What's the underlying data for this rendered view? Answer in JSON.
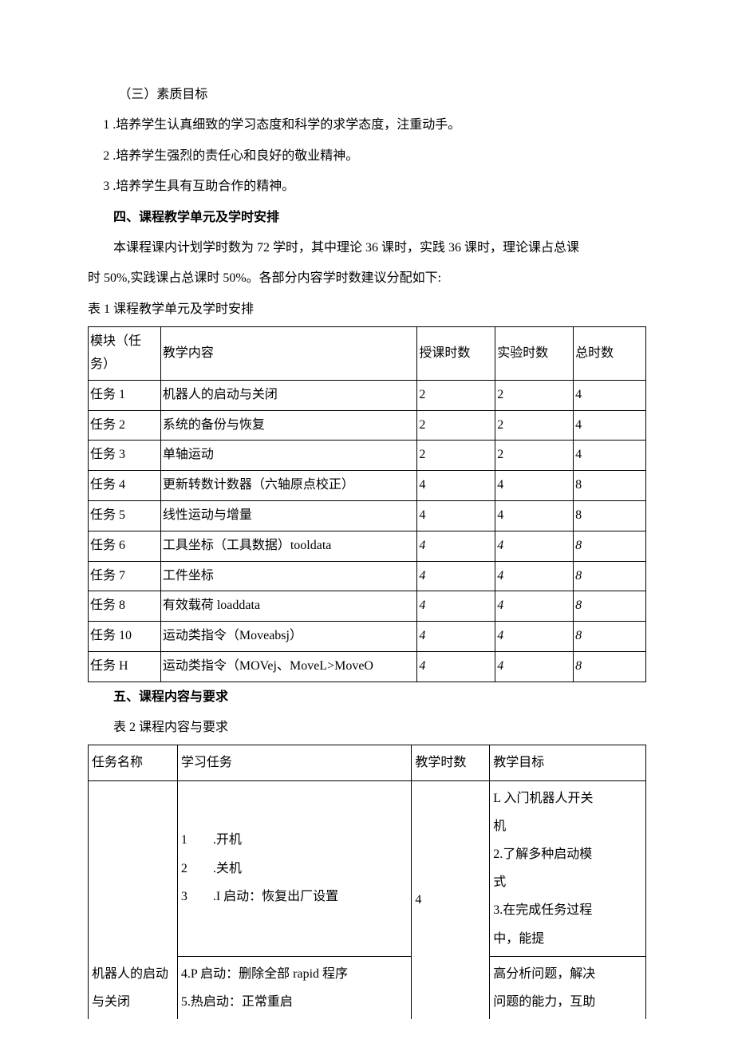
{
  "heading_sub": "（三）素质目标",
  "goals": [
    "1 .培养学生认真细致的学习态度和科学的求学态度，注重动手。",
    "2  .培养学生强烈的责任心和良好的敬业精神。",
    "3  .培养学生具有互助合作的精神。"
  ],
  "section4_title": "四、课程教学单元及学时安排",
  "section4_body1": "本课程课内计划学时数为 72 学时，其中理论 36 课时，实践 36 课时，理论课占总课",
  "section4_body2": "时 50%,实践课占总课时 50%。各部分内容学时数建议分配如下:",
  "table1_caption": "表 1 课程教学单元及学时安排",
  "table1": {
    "col_widths": [
      "13%",
      "46%",
      "14%",
      "14%",
      "13%"
    ],
    "headers": [
      "模块（任务）",
      "教学内容",
      "授课时数",
      "实验时数",
      "总时数"
    ],
    "rows": [
      [
        "任务 1",
        "机器人的启动与关闭",
        "2",
        "2",
        "4"
      ],
      [
        "任务 2",
        "系统的备份与恢复",
        "2",
        "2",
        "4"
      ],
      [
        "任务 3",
        "单轴运动",
        "2",
        "2",
        "4"
      ],
      [
        "任务 4",
        "更新转数计数器（六轴原点校正）",
        "4",
        "4",
        "8"
      ],
      [
        "任务 5",
        "线性运动与增量",
        "4",
        "4",
        "8"
      ],
      [
        "任务 6",
        "工具坐标（工具数据）tooldata",
        "4",
        "4",
        "8"
      ],
      [
        "任务 7",
        "工件坐标",
        "4",
        "4",
        "8"
      ],
      [
        "任务 8",
        "有效载荷 loaddata",
        "4",
        "4",
        "8"
      ],
      [
        "任务 10",
        "运动类指令（Moveabsj）",
        "4",
        "4",
        "8"
      ],
      [
        "任务 H",
        "运动类指令（MOVej、MoveL>MoveO",
        "4",
        "4",
        "8"
      ]
    ],
    "italic_rows_start": 5
  },
  "section5_title": "五、课程内容与要求",
  "table2_caption": "表 2 课程内容与要求",
  "table2": {
    "col_widths": [
      "16%",
      "42%",
      "14%",
      "28%"
    ],
    "headers": [
      "任务名称",
      "学习任务",
      "教学时数",
      "教学目标"
    ],
    "row1": {
      "name_line1": "机器人的启动",
      "name_line2": "与关闭",
      "tasks_a": [
        "1        .开机",
        "2        .关机",
        "3        .I 启动：恢复出厂设置"
      ],
      "hours": "4",
      "goals_a": [
        "L 入门机器人开关",
        "机",
        "2.了解多种启动模",
        "式",
        "3.在完成任务过程",
        "中，能提"
      ],
      "tasks_b": [
        "4.P 启动：删除全部 rapid 程序",
        "5.热启动：正常重启"
      ],
      "goals_b": [
        "高分析问题，解决",
        "问题的能力，互助"
      ]
    }
  }
}
